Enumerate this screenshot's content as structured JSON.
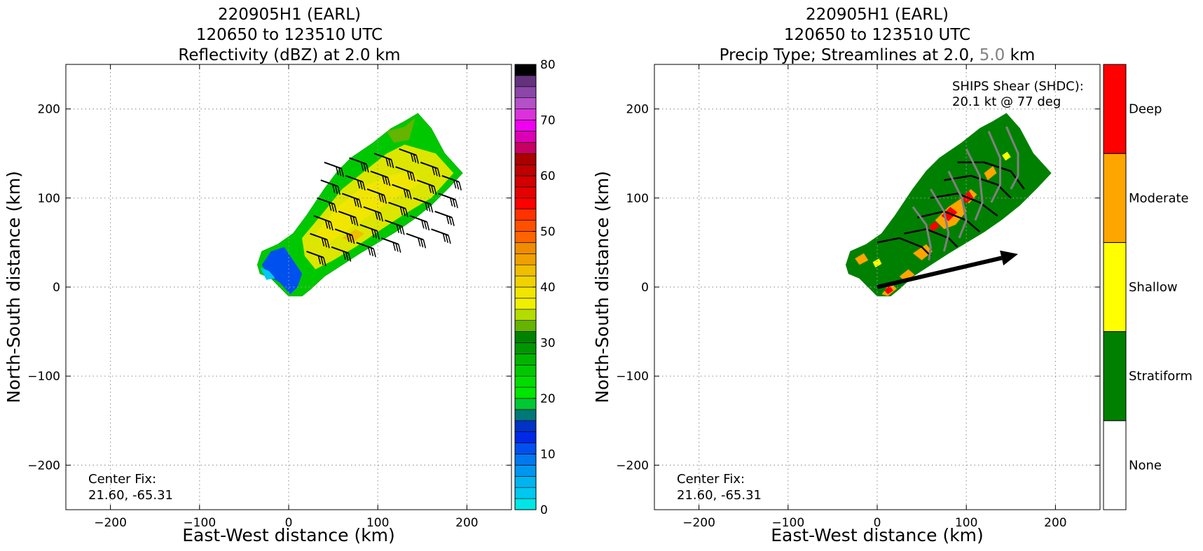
{
  "colors": {
    "axis": "#000000",
    "grid": "#9a9a9a",
    "stratiform": "#008000",
    "shallow": "#ffff00",
    "moderate": "#ffa500",
    "deep": "#ff0000",
    "none": "#ffffff",
    "streamline_2km": "#000000",
    "streamline_5km": "#808080"
  },
  "chart_data": [
    {
      "type": "heatmap",
      "panel": "left",
      "title_lines": [
        "220905H1 (EARL)",
        "120650 to 123510 UTC",
        "Reflectivity (dBZ) at 2.0 km"
      ],
      "xlabel": "East-West distance (km)",
      "ylabel": "North-South distance (km)",
      "xlim": [
        -250,
        250
      ],
      "ylim": [
        -250,
        250
      ],
      "xticks": [
        -200,
        -100,
        0,
        100,
        200
      ],
      "yticks": [
        -200,
        -100,
        0,
        100,
        200
      ],
      "xtick_labels": [
        "−200",
        "−100",
        "0",
        "100",
        "200"
      ],
      "ytick_labels": [
        "−200",
        "−100",
        "0",
        "100",
        "200"
      ],
      "grid": true,
      "center_fix": {
        "label": "Center Fix:",
        "value": "21.60, -65.31"
      },
      "colorbar": {
        "min": 0,
        "max": 80,
        "step": 2.5,
        "ticks": [
          0,
          10,
          20,
          30,
          40,
          50,
          60,
          70,
          80
        ],
        "tick_labels": [
          "0",
          "10",
          "20",
          "30",
          "40",
          "50",
          "60",
          "70",
          "80"
        ],
        "colors": [
          "#00e6e6",
          "#00c8f0",
          "#00b4f0",
          "#0096f0",
          "#0078f0",
          "#0050f0",
          "#0028e6",
          "#0032c8",
          "#007878",
          "#00c832",
          "#00e600",
          "#00dc00",
          "#00c800",
          "#00b400",
          "#009600",
          "#008200",
          "#64b400",
          "#b4dc00",
          "#f0f000",
          "#f0e600",
          "#f0d200",
          "#f0be00",
          "#f0a000",
          "#f08c00",
          "#ff6400",
          "#ff5000",
          "#ff3200",
          "#ff0000",
          "#e60000",
          "#d20000",
          "#be0000",
          "#aa0000",
          "#c80064",
          "#dc00b4",
          "#f000f0",
          "#dc32dc",
          "#b450c8",
          "#8c46aa",
          "#64327d",
          "#000000"
        ]
      },
      "echo_region": {
        "x": [
          -35,
          195
        ],
        "y": [
          -10,
          195
        ],
        "dominant_dbz": [
          25,
          38
        ],
        "low_dbz_region_dbz": [
          8,
          15
        ]
      },
      "wind_barbs_level_km": 2.0
    },
    {
      "type": "heatmap",
      "panel": "right",
      "title_lines": [
        "220905H1 (EARL)",
        "120650 to 123510 UTC"
      ],
      "title_line3": {
        "prefix": "Precip Type; Streamlines at 2.0, ",
        "level2": "5.0",
        "suffix": " km"
      },
      "xlabel": "East-West distance (km)",
      "ylabel": "North-South distance (km)",
      "xlim": [
        -250,
        250
      ],
      "ylim": [
        -250,
        250
      ],
      "xticks": [
        -200,
        -100,
        0,
        100,
        200
      ],
      "yticks": [
        -200,
        -100,
        0,
        100,
        200
      ],
      "xtick_labels": [
        "−200",
        "−100",
        "0",
        "100",
        "200"
      ],
      "ytick_labels": [
        "−200",
        "−100",
        "0",
        "100",
        "200"
      ],
      "grid": true,
      "center_fix": {
        "label": "Center Fix:",
        "value": "21.60, -65.31"
      },
      "shear": {
        "label": "SHIPS Shear (SHDC):",
        "value": "20.1 kt @ 77 deg",
        "magnitude_kt": 20.1,
        "direction_deg": 77,
        "arrow_from": [
          0,
          0
        ],
        "arrow_to": [
          158,
          37
        ]
      },
      "categories": [
        "None",
        "Stratiform",
        "Shallow",
        "Moderate",
        "Deep"
      ],
      "category_colors": [
        "#ffffff",
        "#008000",
        "#ffff00",
        "#ffa500",
        "#ff0000"
      ],
      "echo_region": {
        "x": [
          -35,
          195
        ],
        "y": [
          -10,
          195
        ],
        "dominant_category": "Stratiform"
      }
    }
  ]
}
